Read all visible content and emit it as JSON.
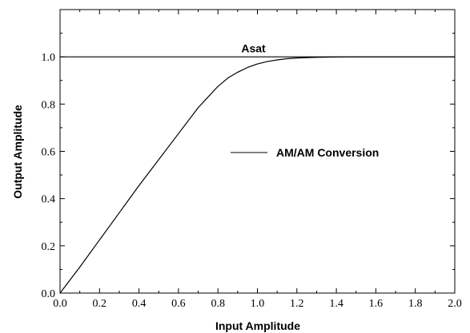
{
  "chart_data": {
    "type": "line",
    "title": "",
    "xlabel": "Input Amplitude",
    "ylabel": "Output Amplitude",
    "xlim": [
      0.0,
      2.0
    ],
    "ylim": [
      0.0,
      1.2
    ],
    "x_ticks": [
      "0.0",
      "0.2",
      "0.4",
      "0.6",
      "0.8",
      "1.0",
      "1.2",
      "1.4",
      "1.6",
      "1.8",
      "2.0"
    ],
    "y_ticks": [
      "0.0",
      "0.2",
      "0.4",
      "0.6",
      "0.8",
      "1.0"
    ],
    "grid": false,
    "legend": {
      "position": "center-right",
      "entries": [
        "AM/AM Conversion"
      ]
    },
    "series": [
      {
        "name": "AM/AM Conversion",
        "x": [
          0.0,
          0.1,
          0.2,
          0.3,
          0.4,
          0.5,
          0.6,
          0.7,
          0.8,
          0.85,
          0.9,
          0.95,
          1.0,
          1.05,
          1.1,
          1.15,
          1.2,
          1.3,
          1.4,
          1.5,
          1.6,
          1.8,
          2.0
        ],
        "y": [
          0.0,
          0.11,
          0.225,
          0.34,
          0.455,
          0.565,
          0.675,
          0.785,
          0.875,
          0.91,
          0.935,
          0.955,
          0.97,
          0.98,
          0.987,
          0.992,
          0.995,
          0.998,
          0.999,
          1.0,
          1.0,
          1.0,
          1.0
        ]
      },
      {
        "name": "Asat",
        "x": [
          0.0,
          2.0
        ],
        "y": [
          1.0,
          1.0
        ]
      }
    ],
    "annotations": [
      {
        "text": "Asat",
        "x": 0.98,
        "y": 1.02
      }
    ]
  }
}
